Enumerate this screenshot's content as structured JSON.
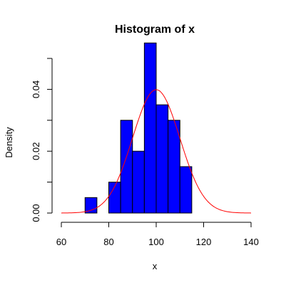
{
  "chart_data": {
    "type": "bar",
    "subtype": "histogram",
    "title": "Histogram of x",
    "xlabel": "x",
    "ylabel": "Density",
    "xlim": [
      60,
      140
    ],
    "ylim": [
      0,
      0.05
    ],
    "x_ticks": [
      60,
      80,
      100,
      120,
      140
    ],
    "y_ticks": [
      0,
      0.01,
      0.02,
      0.03,
      0.04,
      0.05
    ],
    "y_tick_labels": [
      "0.00",
      "",
      "0.02",
      "",
      "0.04",
      ""
    ],
    "bin_edges": [
      70,
      75,
      80,
      85,
      90,
      95,
      100,
      105,
      110,
      115
    ],
    "density": [
      0.005,
      0.0,
      0.01,
      0.03,
      0.02,
      0.055,
      0.035,
      0.03,
      0.015
    ],
    "bar_color": "#0000ff",
    "bar_edge_color": "#000000",
    "density_curve": {
      "type": "line",
      "distribution": "normal",
      "mean": 100,
      "sd": 10,
      "x_range": [
        60,
        140
      ],
      "color": "#ff0000"
    }
  }
}
